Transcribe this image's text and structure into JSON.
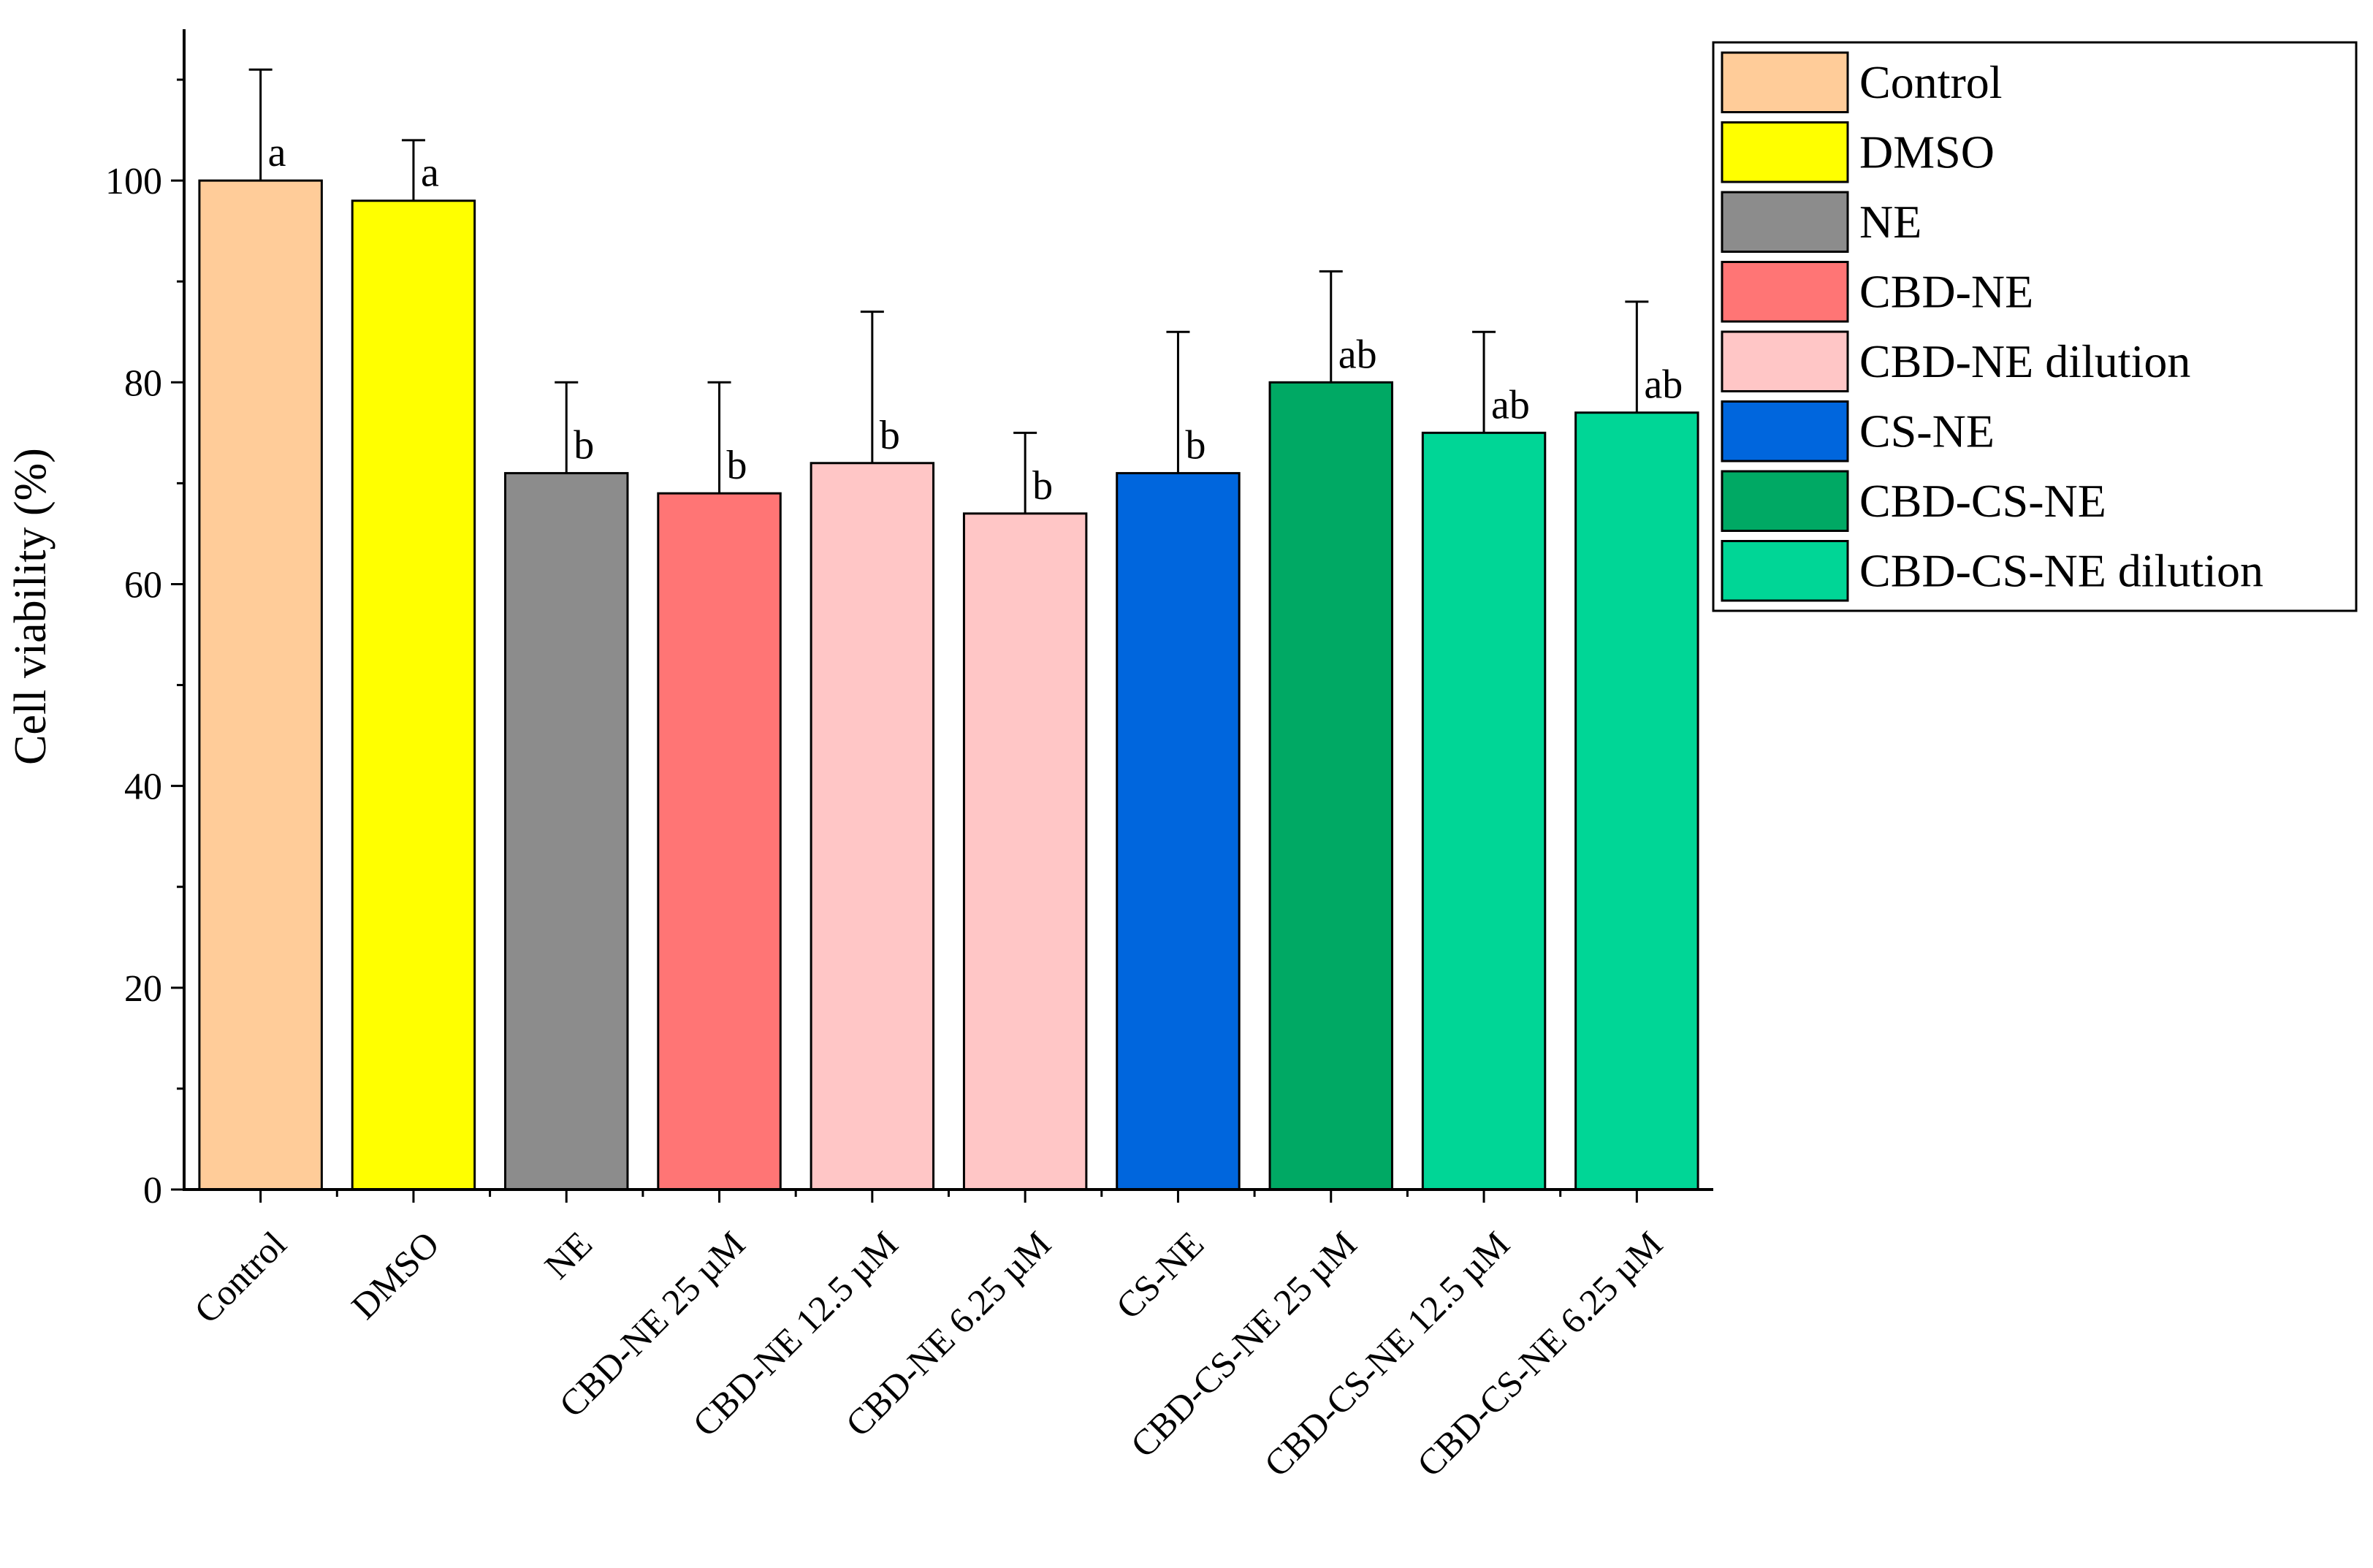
{
  "chart_data": {
    "type": "bar",
    "title": "",
    "xlabel": "",
    "ylabel": "Cell viability (%)",
    "ylim": [
      0,
      115
    ],
    "yticks": [
      0,
      20,
      40,
      60,
      80,
      100
    ],
    "grid": false,
    "legend_position": "top-right",
    "categories": [
      "Control",
      "DMSO",
      "NE",
      "CBD-NE 25 µM",
      "CBD-NE 12.5 µM",
      "CBD-NE 6.25 µM",
      "CS-NE",
      "CBD-CS-NE 25 µM",
      "CBD-CS-NE 12.5 µM",
      "CBD-CS-NE 6.25 µM"
    ],
    "values": [
      100,
      98,
      71,
      69,
      72,
      67,
      71,
      80,
      75,
      77
    ],
    "errors": [
      11,
      6,
      9,
      11,
      15,
      8,
      14,
      11,
      10,
      11
    ],
    "significance": [
      "a",
      "a",
      "b",
      "b",
      "b",
      "b",
      "b",
      "ab",
      "ab",
      "ab"
    ],
    "bar_groups": [
      0,
      1,
      2,
      3,
      4,
      4,
      5,
      6,
      7,
      7
    ],
    "legend": [
      {
        "label": "Control",
        "color": "#FFCC99"
      },
      {
        "label": "DMSO",
        "color": "#FFFF00"
      },
      {
        "label": "NE",
        "color": "#8C8C8C"
      },
      {
        "label": "CBD-NE",
        "color": "#FF7575"
      },
      {
        "label": "CBD-NE dilution",
        "color": "#FFC6C6"
      },
      {
        "label": "CS-NE",
        "color": "#0066DD"
      },
      {
        "label": "CBD-CS-NE",
        "color": "#00A964"
      },
      {
        "label": "CBD-CS-NE dilution",
        "color": "#00D696"
      }
    ]
  }
}
